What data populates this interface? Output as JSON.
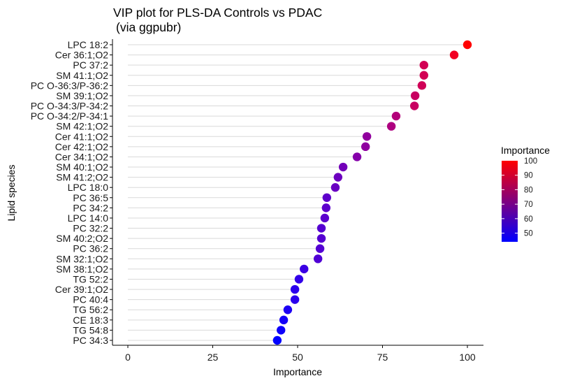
{
  "chart_data": {
    "type": "scatter",
    "subtype": "lollipop",
    "title": "VIP plot for PLS-DA Controls vs PDAC",
    "subtitle": "(via ggpubr)",
    "xlabel": "Importance",
    "ylabel": "Lipid species",
    "xlim": [
      0,
      104
    ],
    "x_ticks": [
      0,
      25,
      50,
      75,
      100
    ],
    "x_tick_labels": [
      "0",
      "25",
      "50",
      "75",
      "100"
    ],
    "grid": "horizontal segments from 0 to value",
    "categories": [
      "LPC 18:2",
      "Cer 36:1;O2",
      "PC 37:2",
      "SM 41:1;O2",
      "PC O-36:3/P-36:2",
      "SM 39:1;O2",
      "PC O-34:3/P-34:2",
      "PC O-34:2/P-34:1",
      "SM 42:1;O2",
      "Cer 41:1;O2",
      "Cer 42:1;O2",
      "Cer 34:1;O2",
      "SM 40:1;O2",
      "SM 41:2;O2",
      "LPC 18:0",
      "PC 36:5",
      "PC 34:2",
      "LPC 14:0",
      "PC 32:2",
      "SM 40:2;O2",
      "PC 36:2",
      "SM 32:1;O2",
      "SM 38:1;O2",
      "TG 52:2",
      "Cer 39:1;O2",
      "PC 40:4",
      "TG 56:2",
      "CE 18:3",
      "TG 54:8",
      "PC 34:3"
    ],
    "values": [
      100,
      96.1,
      87.2,
      87.2,
      86.6,
      84.6,
      84.4,
      79.0,
      77.6,
      70.4,
      70.0,
      67.5,
      63.4,
      61.9,
      61.1,
      58.6,
      58.4,
      58.0,
      57.0,
      57.0,
      56.6,
      56.0,
      51.9,
      50.4,
      49.2,
      49.2,
      47.1,
      45.9,
      45.1,
      44.0
    ],
    "legend": {
      "title": "Importance",
      "position": "right",
      "type": "colorbar",
      "range": [
        44,
        100
      ],
      "ticks": [
        50,
        60,
        70,
        80,
        90,
        100
      ],
      "tick_labels": [
        "50",
        "60",
        "70",
        "80",
        "90",
        "100"
      ],
      "low_color": "#0000ff",
      "high_color": "#ff0000"
    },
    "colors": {
      "segment": "#d9d9d9",
      "axis": "#000000"
    }
  }
}
